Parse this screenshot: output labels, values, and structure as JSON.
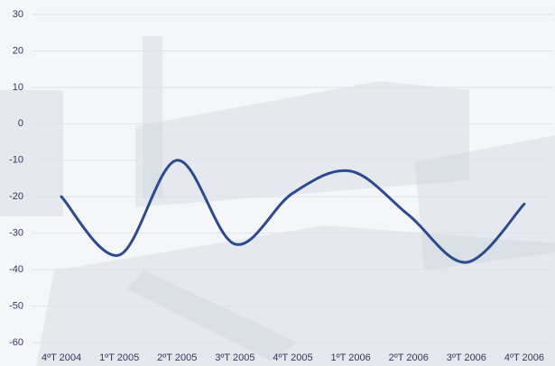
{
  "chart_data": {
    "type": "line",
    "categories": [
      "4ºT 2004",
      "1ºT 2005",
      "2ºT 2005",
      "3ºT 2005",
      "4ºT 2005",
      "1ºT 2006",
      "2ºT 2006",
      "3ºT 2006",
      "4ºT 2006"
    ],
    "values": [
      -20,
      -36,
      -10,
      -33,
      -19,
      -13,
      -25,
      -38,
      -22
    ],
    "color": "#2d4a8e",
    "ylim": [
      -60,
      30
    ],
    "yticks": [
      -60,
      -50,
      -40,
      -30,
      -20,
      -10,
      0,
      10,
      20,
      30
    ],
    "grid": true
  }
}
